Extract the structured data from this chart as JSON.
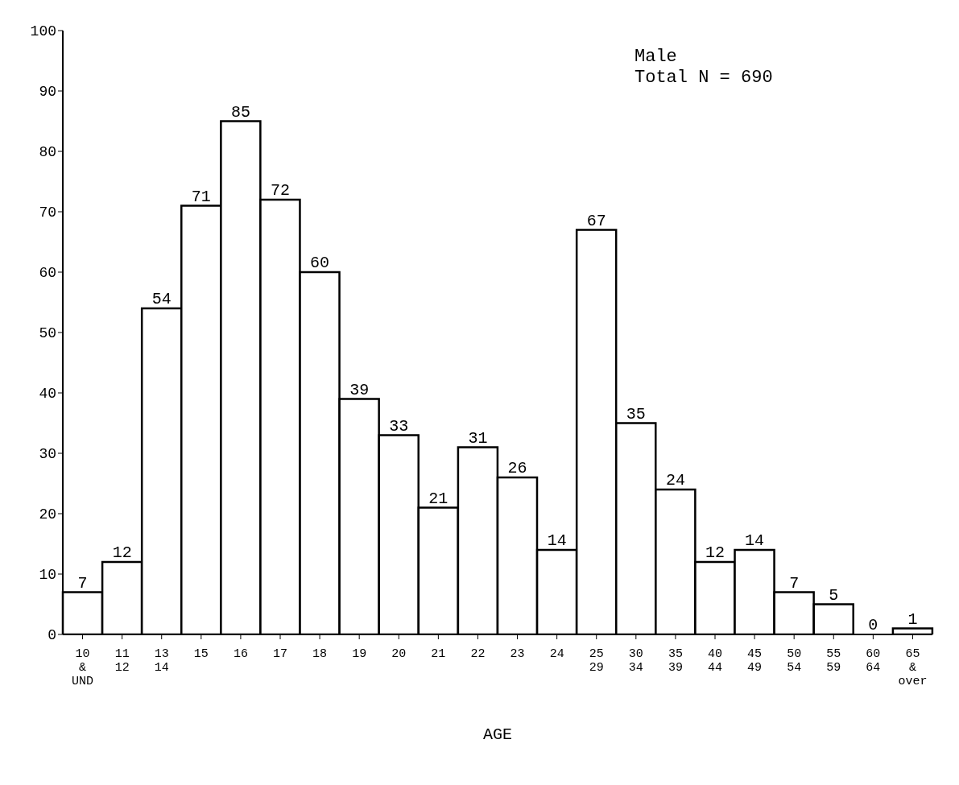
{
  "chart_data": {
    "type": "bar",
    "xlabel": "AGE",
    "categories": [
      "10\n&\nUND",
      "11\n12",
      "13\n14",
      "15",
      "16",
      "17",
      "18",
      "19",
      "20",
      "21",
      "22",
      "23",
      "24",
      "25\n29",
      "30\n34",
      "35\n39",
      "40\n44",
      "45\n49",
      "50\n54",
      "55\n59",
      "60\n64",
      "65\n&\nover"
    ],
    "values": [
      7,
      12,
      54,
      71,
      85,
      72,
      60,
      39,
      33,
      21,
      31,
      26,
      14,
      67,
      35,
      24,
      12,
      14,
      7,
      5,
      0,
      1
    ],
    "color": "#ffffff",
    "ylim": [
      0,
      100
    ],
    "yticks": [
      0,
      10,
      20,
      30,
      40,
      50,
      60,
      70,
      80,
      90,
      100
    ],
    "data_labels": true,
    "grid": false,
    "annotations": [
      "Male",
      "Total N = 690"
    ]
  }
}
